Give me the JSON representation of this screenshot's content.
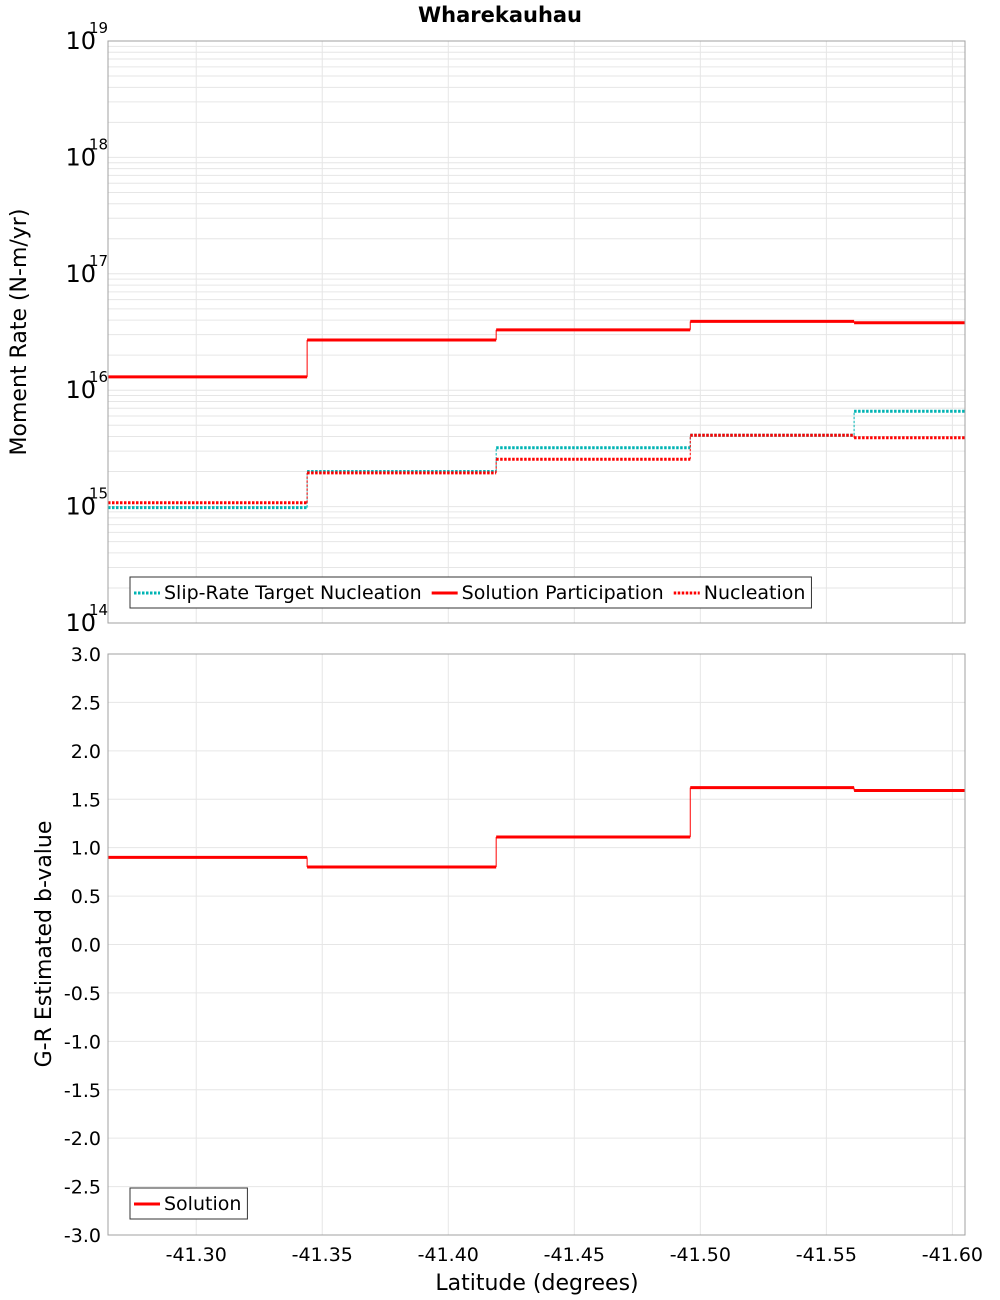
{
  "title": "Wharekauhau",
  "colors": {
    "slip_rate_target": "#00b4b4",
    "solution": "#ff0000",
    "grid": "#e6e6e6",
    "frame": "#a0a0a0"
  },
  "chart_data": [
    {
      "type": "line",
      "panel": "moment-rate",
      "ylabel": "Moment Rate (N-m/yr)",
      "yscale": "log",
      "ylim": [
        100000000000000.0,
        1e+19
      ],
      "y_ticks": [
        {
          "base": "10",
          "exp": "14",
          "value": 100000000000000.0
        },
        {
          "base": "10",
          "exp": "15",
          "value": 1000000000000000.0
        },
        {
          "base": "10",
          "exp": "16",
          "value": 1e+16
        },
        {
          "base": "10",
          "exp": "17",
          "value": 1e+17
        },
        {
          "base": "10",
          "exp": "18",
          "value": 1e+18
        },
        {
          "base": "10",
          "exp": "19",
          "value": 1e+19
        }
      ],
      "xlim": [
        -41.265,
        -41.605
      ],
      "grid": true,
      "legend_position": "bottom-left",
      "series": [
        {
          "name": "Slip-Rate Target Nucleation",
          "style": "dotted",
          "color": "#00b4b4",
          "steps": [
            {
              "x0": -41.265,
              "x1": -41.344,
              "y": 980000000000000.0
            },
            {
              "x0": -41.344,
              "x1": -41.419,
              "y": 2000000000000000.0
            },
            {
              "x0": -41.419,
              "x1": -41.496,
              "y": 3200000000000000.0
            },
            {
              "x0": -41.496,
              "x1": -41.561,
              "y": 4100000000000000.0
            },
            {
              "x0": -41.561,
              "x1": -41.605,
              "y": 6600000000000000.0
            }
          ]
        },
        {
          "name": "Solution Participation",
          "style": "solid",
          "color": "#ff0000",
          "steps": [
            {
              "x0": -41.265,
              "x1": -41.344,
              "y": 1.3e+16
            },
            {
              "x0": -41.344,
              "x1": -41.419,
              "y": 2.7e+16
            },
            {
              "x0": -41.419,
              "x1": -41.496,
              "y": 3.3e+16
            },
            {
              "x0": -41.496,
              "x1": -41.561,
              "y": 3.9e+16
            },
            {
              "x0": -41.561,
              "x1": -41.605,
              "y": 3.8e+16
            }
          ]
        },
        {
          "name": "Nucleation",
          "style": "dotted",
          "color": "#ff0000",
          "steps": [
            {
              "x0": -41.265,
              "x1": -41.344,
              "y": 1080000000000000.0
            },
            {
              "x0": -41.344,
              "x1": -41.419,
              "y": 1950000000000000.0
            },
            {
              "x0": -41.419,
              "x1": -41.496,
              "y": 2550000000000000.0
            },
            {
              "x0": -41.496,
              "x1": -41.561,
              "y": 4100000000000000.0
            },
            {
              "x0": -41.561,
              "x1": -41.605,
              "y": 3900000000000000.0
            }
          ]
        }
      ]
    },
    {
      "type": "line",
      "panel": "b-value",
      "ylabel": "G-R Estimated b-value",
      "xlabel": "Latitude (degrees)",
      "ylim": [
        -3.0,
        3.0
      ],
      "y_ticks": [
        "3.0",
        "2.5",
        "2.0",
        "1.5",
        "1.0",
        "0.5",
        "0.0",
        "-0.5",
        "-1.0",
        "-1.5",
        "-2.0",
        "-2.5",
        "-3.0"
      ],
      "xlim": [
        -41.265,
        -41.605
      ],
      "x_ticks": [
        "-41.30",
        "-41.35",
        "-41.40",
        "-41.45",
        "-41.50",
        "-41.55",
        "-41.60"
      ],
      "grid": true,
      "legend_position": "bottom-left",
      "series": [
        {
          "name": "Solution",
          "style": "solid",
          "color": "#ff0000",
          "steps": [
            {
              "x0": -41.265,
              "x1": -41.344,
              "y": 0.9
            },
            {
              "x0": -41.344,
              "x1": -41.419,
              "y": 0.8
            },
            {
              "x0": -41.419,
              "x1": -41.496,
              "y": 1.11
            },
            {
              "x0": -41.496,
              "x1": -41.561,
              "y": 1.62
            },
            {
              "x0": -41.561,
              "x1": -41.605,
              "y": 1.59
            }
          ]
        }
      ]
    }
  ]
}
